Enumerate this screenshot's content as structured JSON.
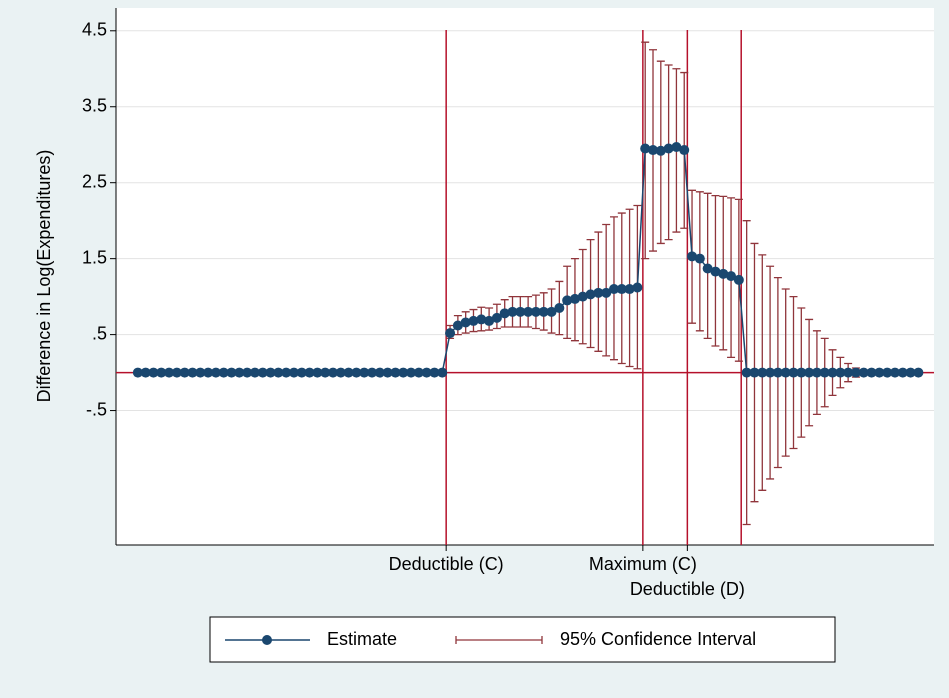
{
  "chart_data": {
    "type": "scatter-ci",
    "ylabel": "Difference in Log(Expenditures)",
    "x": [
      0,
      1,
      2,
      3,
      4,
      5,
      6,
      7,
      8,
      9,
      10,
      11,
      12,
      13,
      14,
      15,
      16,
      17,
      18,
      19,
      20,
      21,
      22,
      23,
      24,
      25,
      26,
      27,
      28,
      29,
      30,
      31,
      32,
      33,
      34,
      35,
      36,
      37,
      38,
      39,
      40,
      41,
      42,
      43,
      44,
      45,
      46,
      47,
      48,
      49,
      50,
      51,
      52,
      53,
      54,
      55,
      56,
      57,
      58,
      59,
      60,
      61,
      62,
      63,
      64,
      65,
      66,
      67,
      68,
      69,
      70,
      71,
      72,
      73,
      74,
      75,
      76,
      77,
      78,
      79,
      80,
      81,
      82,
      83,
      84,
      85,
      86,
      87,
      88,
      89,
      90,
      91,
      92,
      93,
      94,
      95,
      96,
      97,
      98,
      99,
      100
    ],
    "series": [
      {
        "name": "Estimate",
        "color": "#1a476f",
        "values": [
          0,
          0,
          0,
          0,
          0,
          0,
          0,
          0,
          0,
          0,
          0,
          0,
          0,
          0,
          0,
          0,
          0,
          0,
          0,
          0,
          0,
          0,
          0,
          0,
          0,
          0,
          0,
          0,
          0,
          0,
          0,
          0,
          0,
          0,
          0,
          0,
          0,
          0,
          0,
          0,
          0.52,
          0.62,
          0.66,
          0.68,
          0.7,
          0.68,
          0.72,
          0.78,
          0.8,
          0.8,
          0.8,
          0.8,
          0.8,
          0.8,
          0.85,
          0.95,
          0.97,
          1.0,
          1.03,
          1.05,
          1.05,
          1.1,
          1.1,
          1.1,
          1.12,
          2.95,
          2.93,
          2.92,
          2.95,
          2.97,
          2.93,
          1.53,
          1.5,
          1.37,
          1.33,
          1.3,
          1.27,
          1.22,
          0,
          0,
          0,
          0,
          0,
          0,
          0,
          0,
          0,
          0,
          0,
          0,
          0,
          0,
          0,
          0,
          0,
          0,
          0,
          0,
          0,
          0,
          0
        ]
      }
    ],
    "ci": {
      "name": "95% Confidence Interval",
      "color": "#90353b",
      "lower": [
        null,
        null,
        null,
        null,
        null,
        null,
        null,
        null,
        null,
        null,
        null,
        null,
        null,
        null,
        null,
        null,
        null,
        null,
        null,
        null,
        null,
        null,
        null,
        null,
        null,
        null,
        null,
        null,
        null,
        null,
        null,
        null,
        null,
        null,
        null,
        null,
        null,
        null,
        null,
        null,
        0.45,
        0.5,
        0.52,
        0.54,
        0.55,
        0.56,
        0.58,
        0.6,
        0.6,
        0.6,
        0.6,
        0.58,
        0.56,
        0.52,
        0.5,
        0.45,
        0.42,
        0.38,
        0.33,
        0.28,
        0.22,
        0.17,
        0.12,
        0.08,
        0.05,
        1.5,
        1.6,
        1.7,
        1.75,
        1.85,
        1.9,
        0.65,
        0.55,
        0.45,
        0.35,
        0.3,
        0.2,
        0.15,
        -2.0,
        -1.7,
        -1.55,
        -1.4,
        -1.25,
        -1.1,
        -1.0,
        -0.85,
        -0.7,
        -0.55,
        -0.45,
        -0.3,
        -0.2,
        -0.12,
        -0.06,
        null,
        null,
        null,
        null,
        null,
        null,
        null,
        null
      ],
      "upper": [
        null,
        null,
        null,
        null,
        null,
        null,
        null,
        null,
        null,
        null,
        null,
        null,
        null,
        null,
        null,
        null,
        null,
        null,
        null,
        null,
        null,
        null,
        null,
        null,
        null,
        null,
        null,
        null,
        null,
        null,
        null,
        null,
        null,
        null,
        null,
        null,
        null,
        null,
        null,
        null,
        0.62,
        0.75,
        0.8,
        0.83,
        0.86,
        0.85,
        0.9,
        0.96,
        1.0,
        1.0,
        1.0,
        1.02,
        1.05,
        1.1,
        1.2,
        1.4,
        1.5,
        1.62,
        1.75,
        1.85,
        1.95,
        2.05,
        2.1,
        2.15,
        2.2,
        4.35,
        4.25,
        4.1,
        4.05,
        4.0,
        3.95,
        2.4,
        2.38,
        2.36,
        2.33,
        2.32,
        2.3,
        2.28,
        2.0,
        1.7,
        1.55,
        1.4,
        1.25,
        1.1,
        1.0,
        0.85,
        0.7,
        0.55,
        0.45,
        0.3,
        0.2,
        0.12,
        0.06,
        null,
        null,
        null,
        null,
        null,
        null,
        null,
        null
      ]
    },
    "xlim": [
      -2.8,
      102
    ],
    "ylim": [
      -2.27,
      4.8
    ],
    "xticks": [
      {
        "value": 39.5,
        "label": "Deductible (C)"
      },
      {
        "value": 64.7,
        "label": "Maximum (C)"
      },
      {
        "value": 70.4,
        "label": "Deductible (D)"
      }
    ],
    "yticks": [
      {
        "value": -0.5,
        "label": "-.5"
      },
      {
        "value": 0.5,
        "label": ".5"
      },
      1.5,
      2.5,
      3.5,
      4.5
    ],
    "xlines": [
      39.5,
      64.7,
      70.4,
      77.3
    ],
    "hline": 0,
    "refline_color": "#b5112b",
    "grid": true
  }
}
